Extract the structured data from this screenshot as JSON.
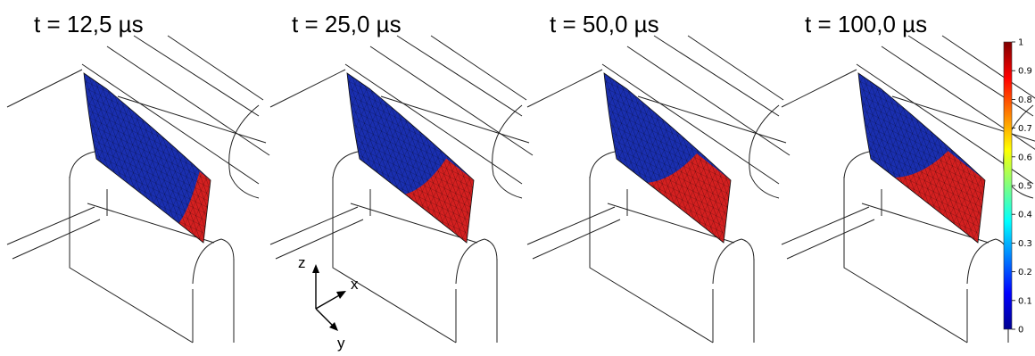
{
  "panels": [
    {
      "time_label": "t = 12,5 µs",
      "fraction": 0.22
    },
    {
      "time_label": "t = 25,0 µs",
      "fraction": 0.55
    },
    {
      "time_label": "t = 50,0 µs",
      "fraction": 0.68
    },
    {
      "time_label": "t = 100,0 µs",
      "fraction": 0.74
    }
  ],
  "axes": {
    "z": "z",
    "x": "x",
    "y": "y"
  },
  "colorbar": {
    "ticks": [
      "1",
      "0.9",
      "0.8",
      "0.7",
      "0.6",
      "0.5",
      "0.4",
      "0.3",
      "0.2",
      "0.1",
      "0"
    ],
    "colors": [
      "#7f0000",
      "#ff0000",
      "#ff7f00",
      "#ffff00",
      "#7fff7f",
      "#00ffff",
      "#007fff",
      "#0000ff",
      "#00008f"
    ]
  },
  "colors": {
    "blue_region": "#1a2fb0",
    "red_region": "#d42020",
    "wireframe": "#222222"
  }
}
